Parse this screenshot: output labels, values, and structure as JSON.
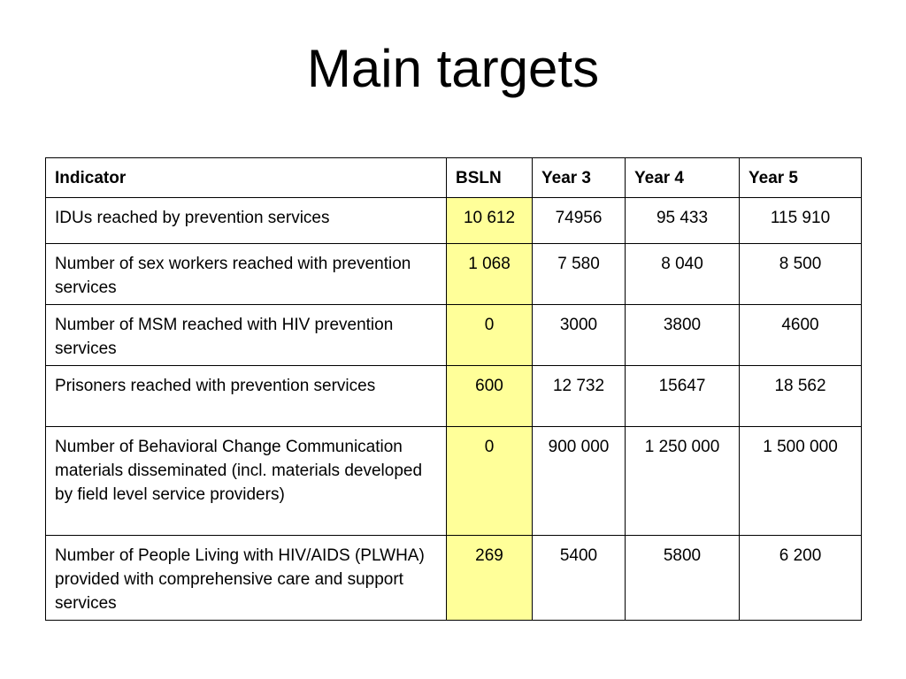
{
  "slide": {
    "title": "Main targets"
  },
  "table": {
    "headers": {
      "indicator": "Indicator",
      "bsln": "BSLN",
      "year3": "Year 3",
      "year4": "Year 4",
      "year5": "Year 5"
    },
    "highlight_color": "#ffff99",
    "rows": [
      {
        "indicator": "IDUs reached by prevention services",
        "bsln": "10 612",
        "year3": "74956",
        "year4": "95 433",
        "year5": "115 910"
      },
      {
        "indicator": "Number of sex workers reached with prevention services",
        "bsln": "1 068",
        "year3": "7 580",
        "year4": "8 040",
        "year5": "8 500"
      },
      {
        "indicator": "Number of MSM reached with HIV prevention services",
        "bsln": "0",
        "year3": "3000",
        "year4": "3800",
        "year5": "4600"
      },
      {
        "indicator": "Prisoners reached with prevention services",
        "bsln": "600",
        "year3": "12 732",
        "year4": "15647",
        "year5": "18 562"
      },
      {
        "indicator": "Number of Behavioral Change Communication materials disseminated (incl. materials developed by field level service providers)",
        "bsln": "0",
        "year3": "900 000",
        "year4": "1 250 000",
        "year5": "1 500 000"
      },
      {
        "indicator": "Number of People Living with HIV/AIDS (PLWHA) provided with comprehensive care and support services",
        "bsln": "269",
        "year3": "5400",
        "year4": "5800",
        "year5": "6 200"
      }
    ]
  }
}
